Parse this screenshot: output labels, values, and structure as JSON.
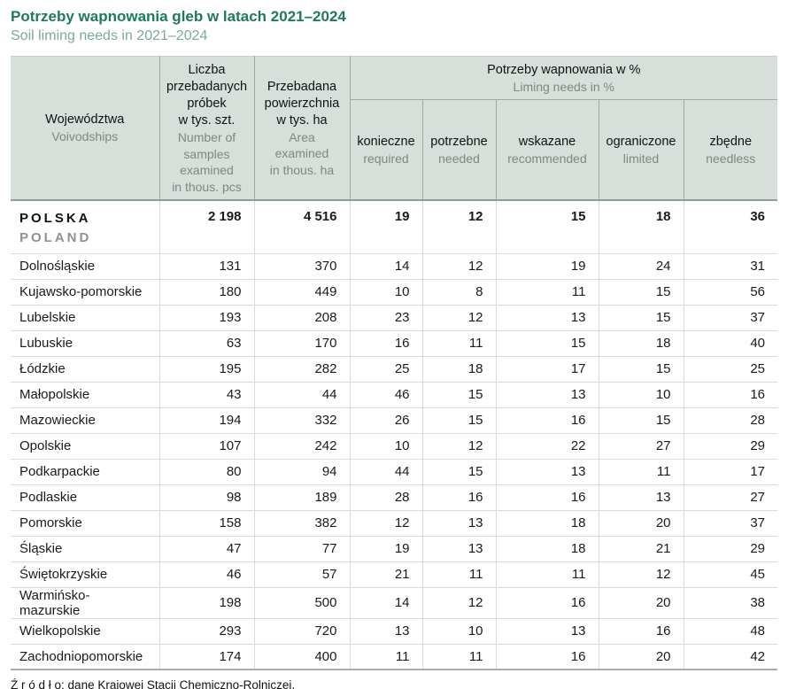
{
  "page": {
    "title_pl": "Potrzeby wapnowania gleb w latach 2021–2024",
    "title_en": "Soil liming needs in 2021–2024",
    "source_label": "Ź r ó d ł o:",
    "source_text": "dane Krajowej Stacji Chemiczno-Rolniczej."
  },
  "colors": {
    "title_green": "#1e7a5a",
    "subtitle_green": "#7aa99a",
    "header_bg": "#d6dfda",
    "header_border": "#9fa9a3",
    "header_en_text": "#7c8983",
    "body_border": "#dadada",
    "poland_gray": "#8b928f"
  },
  "table": {
    "header": {
      "col1_pl": "Województwa",
      "col1_en": "Voivodships",
      "col2_pl": "Liczba\nprzebadanych\npróbek\nw tys. szt.",
      "col2_en": "Number of\nsamples\nexamined\nin thous. pcs",
      "col3_pl": "Przebadana\npowierzchnia\nw tys. ha",
      "col3_en": "Area\nexamined\nin thous. ha",
      "span_pl": "Potrzeby wapnowania w %",
      "span_en": "Liming needs in %",
      "subcols": [
        {
          "pl": "konieczne",
          "en": "required"
        },
        {
          "pl": "potrzebne",
          "en": "needed"
        },
        {
          "pl": "wskazane",
          "en": "recommended"
        },
        {
          "pl": "ograniczone",
          "en": "limited"
        },
        {
          "pl": "zbędne",
          "en": "needless"
        }
      ]
    },
    "total_row": {
      "name_pl": "POLSKA",
      "name_en": "POLAND",
      "values": [
        "2 198",
        "4 516",
        "19",
        "12",
        "15",
        "18",
        "36"
      ]
    },
    "rows": [
      {
        "name": "Dolnośląskie",
        "values": [
          "131",
          "370",
          "14",
          "12",
          "19",
          "24",
          "31"
        ]
      },
      {
        "name": "Kujawsko-pomorskie",
        "values": [
          "180",
          "449",
          "10",
          "8",
          "11",
          "15",
          "56"
        ]
      },
      {
        "name": "Lubelskie",
        "values": [
          "193",
          "208",
          "23",
          "12",
          "13",
          "15",
          "37"
        ]
      },
      {
        "name": "Lubuskie",
        "values": [
          "63",
          "170",
          "16",
          "11",
          "15",
          "18",
          "40"
        ]
      },
      {
        "name": "Łódzkie",
        "values": [
          "195",
          "282",
          "25",
          "18",
          "17",
          "15",
          "25"
        ]
      },
      {
        "name": "Małopolskie",
        "values": [
          "43",
          "44",
          "46",
          "15",
          "13",
          "10",
          "16"
        ]
      },
      {
        "name": "Mazowieckie",
        "values": [
          "194",
          "332",
          "26",
          "15",
          "16",
          "15",
          "28"
        ]
      },
      {
        "name": "Opolskie",
        "values": [
          "107",
          "242",
          "10",
          "12",
          "22",
          "27",
          "29"
        ]
      },
      {
        "name": "Podkarpackie",
        "values": [
          "80",
          "94",
          "44",
          "15",
          "13",
          "11",
          "17"
        ]
      },
      {
        "name": "Podlaskie",
        "values": [
          "98",
          "189",
          "28",
          "16",
          "16",
          "13",
          "27"
        ]
      },
      {
        "name": "Pomorskie",
        "values": [
          "158",
          "382",
          "12",
          "13",
          "18",
          "20",
          "37"
        ]
      },
      {
        "name": "Śląskie",
        "values": [
          "47",
          "77",
          "19",
          "13",
          "18",
          "21",
          "29"
        ]
      },
      {
        "name": "Świętokrzyskie",
        "values": [
          "46",
          "57",
          "21",
          "11",
          "11",
          "12",
          "45"
        ]
      },
      {
        "name": "Warmińsko-mazurskie",
        "values": [
          "198",
          "500",
          "14",
          "12",
          "16",
          "20",
          "38"
        ]
      },
      {
        "name": "Wielkopolskie",
        "values": [
          "293",
          "720",
          "13",
          "10",
          "13",
          "16",
          "48"
        ]
      },
      {
        "name": "Zachodniopomorskie",
        "values": [
          "174",
          "400",
          "11",
          "11",
          "16",
          "20",
          "42"
        ]
      }
    ]
  }
}
